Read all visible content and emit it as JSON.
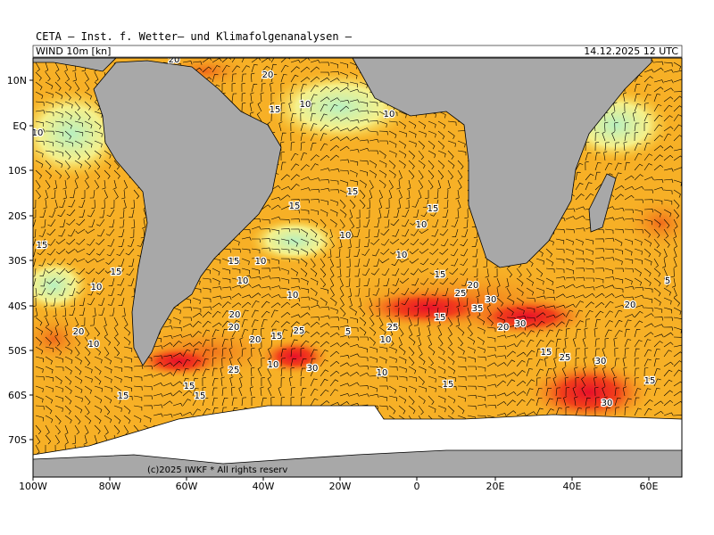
{
  "header": {
    "title": "CETA – Inst. f. Wetter– und Klimafolgenanalysen –",
    "parameter": "WIND 10m [kn]",
    "valid_time": "14.12.2025 12 UTC"
  },
  "map": {
    "lat_labels": [
      "10N",
      "EQ",
      "10S",
      "20S",
      "30S",
      "40S",
      "50S",
      "60S",
      "70S"
    ],
    "lon_labels": [
      "100W",
      "80W",
      "60W",
      "40W",
      "20W",
      "0",
      "20E",
      "40E",
      "60E"
    ],
    "contour_labels": [
      "20",
      "20",
      "15",
      "10",
      "10",
      "10",
      "15",
      "15",
      "15",
      "15",
      "10",
      "10",
      "10",
      "15",
      "10",
      "10",
      "15",
      "10",
      "10",
      "20",
      "20",
      "20",
      "25",
      "15",
      "30",
      "25",
      "20",
      "30",
      "35",
      "25",
      "20",
      "30",
      "15",
      "25",
      "20",
      "15",
      "25",
      "30",
      "20",
      "15",
      "15",
      "10",
      "15",
      "10",
      "5",
      "10",
      "15",
      "15",
      "10",
      "30",
      "15",
      "5"
    ],
    "copyright": "(c)2025 IWKF * All rights reserv"
  }
}
